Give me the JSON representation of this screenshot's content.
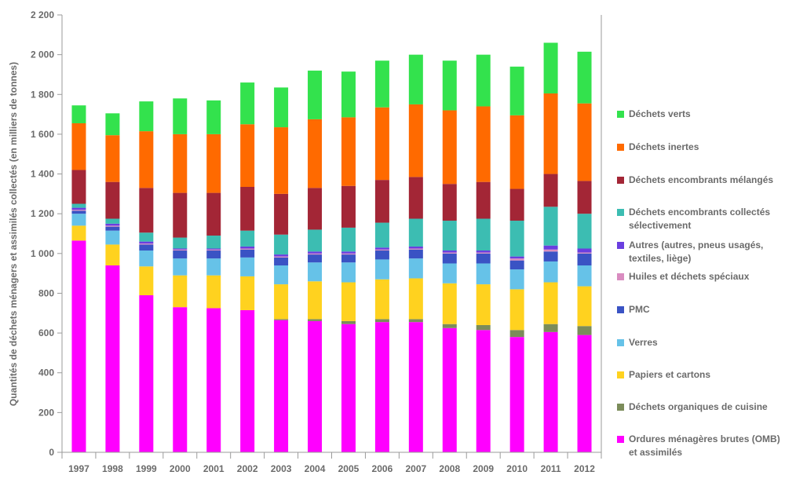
{
  "chart_data": {
    "type": "bar",
    "stacked": true,
    "title": "",
    "xlabel": "",
    "ylabel": "Quantités de déchets ménagers et assimilés collectés (en milliers de tonnes)",
    "ylim": [
      0,
      2200
    ],
    "yticks": [
      0,
      200,
      400,
      600,
      800,
      1000,
      1200,
      1400,
      1600,
      1800,
      2000,
      2200
    ],
    "ytick_labels": [
      "0",
      "200",
      "400",
      "600",
      "800",
      "1 000",
      "1 200",
      "1 400",
      "1 600",
      "1 800",
      "2 000",
      "2 200"
    ],
    "grid": false,
    "legend_position": "right",
    "categories": [
      "1997",
      "1998",
      "1999",
      "2000",
      "2001",
      "2002",
      "2003",
      "2004",
      "2005",
      "2006",
      "2007",
      "2008",
      "2009",
      "2010",
      "2011",
      "2012"
    ],
    "series": [
      {
        "name": "Ordures ménagères brutes (OMB) et assimilés",
        "color": "#ff00ff",
        "values": [
          1065,
          940,
          790,
          730,
          725,
          715,
          665,
          660,
          645,
          655,
          655,
          625,
          615,
          580,
          605,
          590
        ]
      },
      {
        "name": "Déchets organiques de cuisine",
        "color": "#7b8c5a",
        "values": [
          0,
          0,
          0,
          0,
          0,
          0,
          5,
          10,
          15,
          15,
          15,
          20,
          25,
          35,
          40,
          45
        ]
      },
      {
        "name": "Papiers et cartons",
        "color": "#ffd21f",
        "values": [
          75,
          105,
          145,
          160,
          165,
          170,
          175,
          190,
          195,
          200,
          205,
          205,
          205,
          205,
          210,
          200
        ]
      },
      {
        "name": "Verres",
        "color": "#66c2e8",
        "values": [
          60,
          70,
          80,
          85,
          85,
          95,
          95,
          95,
          100,
          100,
          100,
          100,
          105,
          100,
          105,
          105
        ]
      },
      {
        "name": "PMC",
        "color": "#3a53c4",
        "values": [
          15,
          20,
          30,
          40,
          40,
          40,
          40,
          40,
          40,
          45,
          45,
          50,
          50,
          45,
          50,
          60
        ]
      },
      {
        "name": "Huiles et déchets spéciaux",
        "color": "#d98cc0",
        "values": [
          5,
          5,
          5,
          5,
          5,
          5,
          5,
          5,
          5,
          5,
          5,
          5,
          5,
          10,
          10,
          5
        ]
      },
      {
        "name": "Autres (autres, pneus usagés, textiles, liège)",
        "color": "#6a3ee0",
        "values": [
          10,
          10,
          10,
          5,
          5,
          10,
          10,
          10,
          10,
          10,
          10,
          10,
          10,
          10,
          20,
          20
        ]
      },
      {
        "name": "Déchets encombrants collectés sélectivement",
        "color": "#3cbdb2",
        "values": [
          20,
          25,
          45,
          55,
          65,
          80,
          100,
          110,
          120,
          125,
          140,
          150,
          160,
          180,
          195,
          175
        ]
      },
      {
        "name": "Déchets encombrants mélangés",
        "color": "#a32636",
        "values": [
          170,
          185,
          225,
          225,
          215,
          220,
          205,
          210,
          210,
          215,
          210,
          185,
          185,
          160,
          165,
          165
        ]
      },
      {
        "name": "Déchets inertes",
        "color": "#ff6a00",
        "values": [
          235,
          235,
          285,
          295,
          295,
          315,
          335,
          345,
          345,
          365,
          365,
          370,
          380,
          370,
          405,
          390
        ]
      },
      {
        "name": "Déchets verts",
        "color": "#33e24d",
        "values": [
          90,
          110,
          150,
          180,
          170,
          210,
          200,
          245,
          230,
          235,
          250,
          250,
          260,
          245,
          255,
          260
        ]
      }
    ]
  }
}
